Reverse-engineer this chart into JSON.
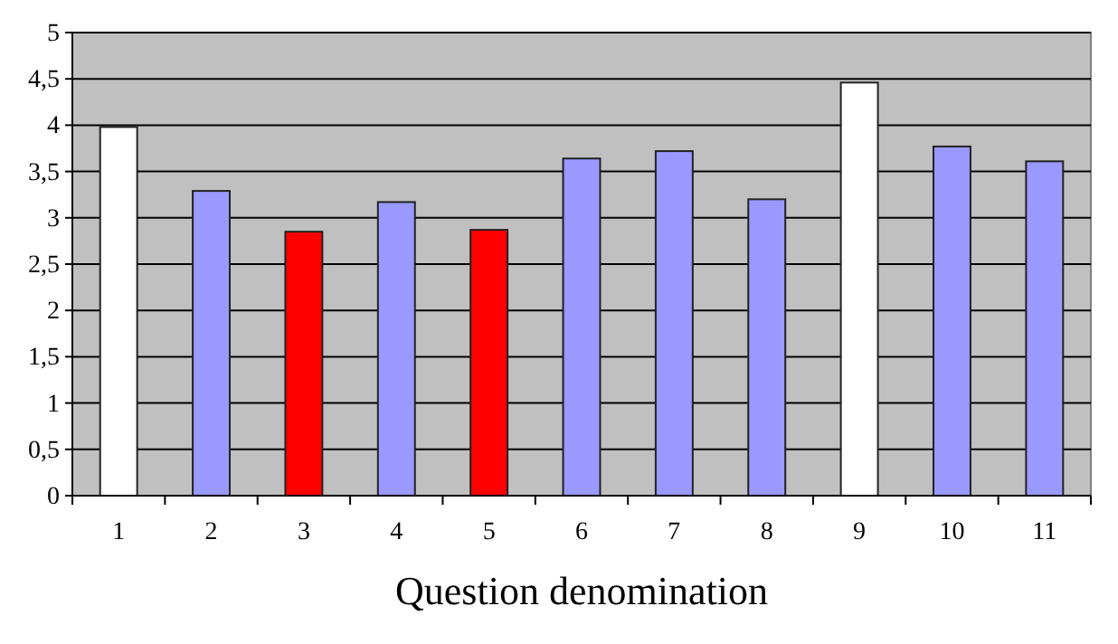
{
  "chart_data": {
    "type": "bar",
    "xlabel": "Question denomination",
    "categories": [
      "1",
      "2",
      "3",
      "4",
      "5",
      "6",
      "7",
      "8",
      "9",
      "10",
      "11"
    ],
    "values": [
      3.98,
      3.29,
      2.85,
      3.17,
      2.87,
      3.64,
      3.72,
      3.2,
      4.46,
      3.77,
      3.61
    ],
    "colors": [
      "#ffffff",
      "#9999ff",
      "#ff0000",
      "#9999ff",
      "#ff0000",
      "#9999ff",
      "#9999ff",
      "#9999ff",
      "#ffffff",
      "#9999ff",
      "#9999ff"
    ],
    "ylim": [
      0,
      5
    ],
    "yticks": [
      0,
      {
        "value": 0.5,
        "label": "0,5"
      },
      1,
      {
        "value": 1.5,
        "label": "1,5"
      },
      2,
      {
        "value": 2.5,
        "label": "2,5"
      },
      3,
      {
        "value": 3.5,
        "label": "3,5"
      },
      4,
      {
        "value": 4.5,
        "label": "4,5"
      },
      5
    ],
    "grid": "y"
  }
}
